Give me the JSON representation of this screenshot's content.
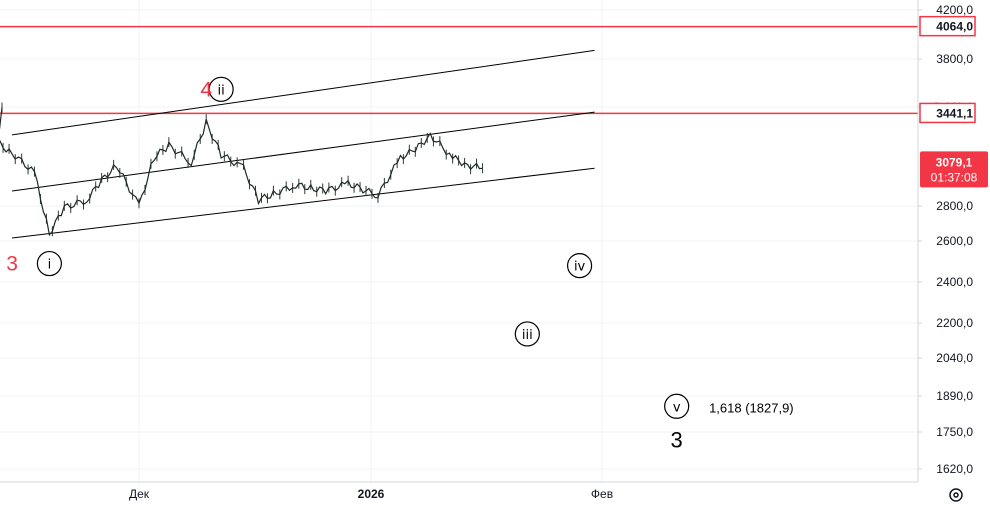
{
  "chart_data": {
    "type": "line",
    "series": [
      {
        "x": [
          "2025-11-10",
          "2025-11-12",
          "2025-11-14",
          "2025-11-17",
          "2025-11-19",
          "2025-11-21",
          "2025-11-24",
          "2025-11-26",
          "2025-11-28",
          "2025-12-01",
          "2025-12-03",
          "2025-12-05",
          "2025-12-08",
          "2025-12-10",
          "2025-12-12",
          "2025-12-15",
          "2025-12-17",
          "2025-12-19",
          "2025-12-22",
          "2025-12-24",
          "2025-12-26",
          "2025-12-29",
          "2026-01-02",
          "2026-01-05",
          "2026-01-07",
          "2026-01-09",
          "2026-01-12",
          "2026-01-14",
          "2026-01-16"
        ],
        "y": [
          3480,
          3250,
          3180,
          3050,
          2650,
          2820,
          2870,
          3000,
          3100,
          2830,
          3150,
          3230,
          3120,
          3380,
          3170,
          3080,
          2870,
          2910,
          2970,
          2950,
          2930,
          2980,
          2900,
          3150,
          3200,
          3300,
          3150,
          3100,
          3080
        ]
      }
    ],
    "y_ticks": [
      "4200,0",
      "3800,0",
      "3 441,1",
      "2800,0",
      "2600,0",
      "2400,0",
      "2200,0",
      "2040,0",
      "1890,0",
      "1750,0",
      "1620,0"
    ],
    "x_ticks": [
      "Дек",
      "2026",
      "Фев"
    ],
    "horizontal_levels": [
      {
        "label": "4064,0",
        "value": 4064.0,
        "color": "#f23645"
      },
      {
        "label": "3441,1",
        "value": 3441.1,
        "color": "#f23645"
      }
    ],
    "last_price": {
      "price": "3079,1",
      "countdown": "01:37:08",
      "value": 3079.1,
      "color": "#f23645"
    },
    "channel_lines": [
      {
        "x1": "2025-11-14",
        "y1": 3300,
        "x2": "2026-01-31",
        "y2": 3870
      },
      {
        "x1": "2025-11-14",
        "y1": 2930,
        "x2": "2026-01-31",
        "y2": 3450
      },
      {
        "x1": "2025-11-14",
        "y1": 2620,
        "x2": "2026-01-31",
        "y2": 3080
      }
    ],
    "wave_labels": [
      {
        "text": "i",
        "x": "2025-11-19",
        "y": 2490
      },
      {
        "text": "ii",
        "x": "2025-12-12",
        "y": 3600
      },
      {
        "text": "iii",
        "x": "2026-01-22",
        "y": 2150
      },
      {
        "text": "iv",
        "x": "2026-01-29",
        "y": 2480
      },
      {
        "text": "v",
        "x": "2026-02-11",
        "y": 1850
      }
    ],
    "degree_labels": [
      {
        "text": "3",
        "x": "2025-11-14",
        "y": 2490,
        "color": "#f23645"
      },
      {
        "text": "4",
        "x": "2025-12-10",
        "y": 3600,
        "color": "#f23645"
      },
      {
        "text": "3",
        "x": "2026-02-11",
        "y": 1720,
        "color": "#000000"
      }
    ],
    "fib_label": {
      "text": "1,618 (1827,9)",
      "x": "2026-02-21",
      "y": 1845
    }
  }
}
